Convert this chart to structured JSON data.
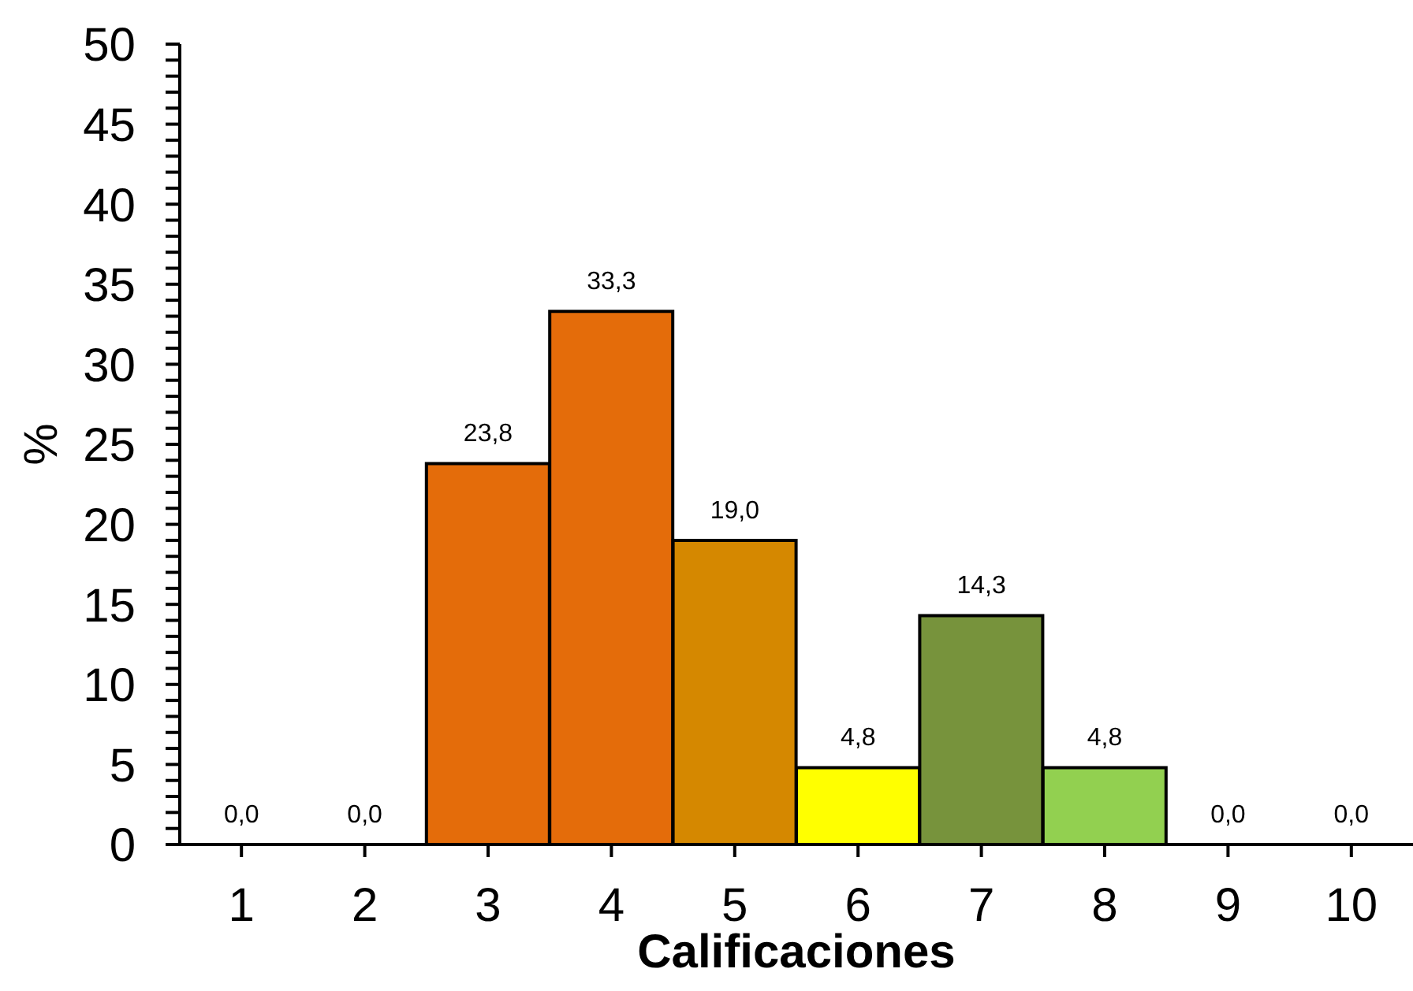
{
  "chart_data": {
    "type": "bar",
    "xlabel": "Calificaciones",
    "ylabel": "%",
    "categories": [
      "1",
      "2",
      "3",
      "4",
      "5",
      "6",
      "7",
      "8",
      "9",
      "10"
    ],
    "values": [
      0,
      0,
      23.8,
      33.3,
      19.0,
      4.8,
      14.3,
      4.8,
      0,
      0
    ],
    "value_labels": [
      "0,0",
      "0,0",
      "23,8",
      "33,3",
      "19,0",
      "4,8",
      "14,3",
      "4,8",
      "0,0",
      "0,0"
    ],
    "colors": [
      "#e46c0a",
      "#e46c0a",
      "#e46c0a",
      "#e46c0a",
      "#d58800",
      "#ffff00",
      "#77933c",
      "#92d050",
      "#92d050",
      "#92d050"
    ],
    "ylim": [
      0,
      50
    ],
    "yticks": [
      0,
      {
        "value": 1,
        "label": null
      },
      {
        "value": 2,
        "label": null
      },
      {
        "value": 3,
        "label": null
      },
      {
        "value": 4,
        "label": null
      },
      5,
      {
        "value": 6,
        "label": null
      },
      {
        "value": 7,
        "label": null
      },
      {
        "value": 8,
        "label": null
      },
      {
        "value": 9,
        "label": null
      },
      10,
      {
        "value": 11,
        "label": null
      },
      {
        "value": 12,
        "label": null
      },
      {
        "value": 13,
        "label": null
      },
      {
        "value": 14,
        "label": null
      },
      15,
      {
        "value": 16,
        "label": null
      },
      {
        "value": 17,
        "label": null
      },
      {
        "value": 18,
        "label": null
      },
      {
        "value": 19,
        "label": null
      },
      20,
      {
        "value": 21,
        "label": null
      },
      {
        "value": 22,
        "label": null
      },
      {
        "value": 23,
        "label": null
      },
      {
        "value": 24,
        "label": null
      },
      25,
      {
        "value": 26,
        "label": null
      },
      {
        "value": 27,
        "label": null
      },
      {
        "value": 28,
        "label": null
      },
      {
        "value": 29,
        "label": null
      },
      30,
      {
        "value": 31,
        "label": null
      },
      {
        "value": 32,
        "label": null
      },
      {
        "value": 33,
        "label": null
      },
      {
        "value": 34,
        "label": null
      },
      35,
      {
        "value": 36,
        "label": null
      },
      {
        "value": 37,
        "label": null
      },
      {
        "value": 38,
        "label": null
      },
      {
        "value": 39,
        "label": null
      },
      40,
      {
        "value": 41,
        "label": null
      },
      {
        "value": 42,
        "label": null
      },
      {
        "value": 43,
        "label": null
      },
      {
        "value": 44,
        "label": null
      },
      45,
      {
        "value": 46,
        "label": null
      },
      {
        "value": 47,
        "label": null
      },
      {
        "value": 48,
        "label": null
      },
      {
        "value": 49,
        "label": null
      },
      50
    ]
  }
}
